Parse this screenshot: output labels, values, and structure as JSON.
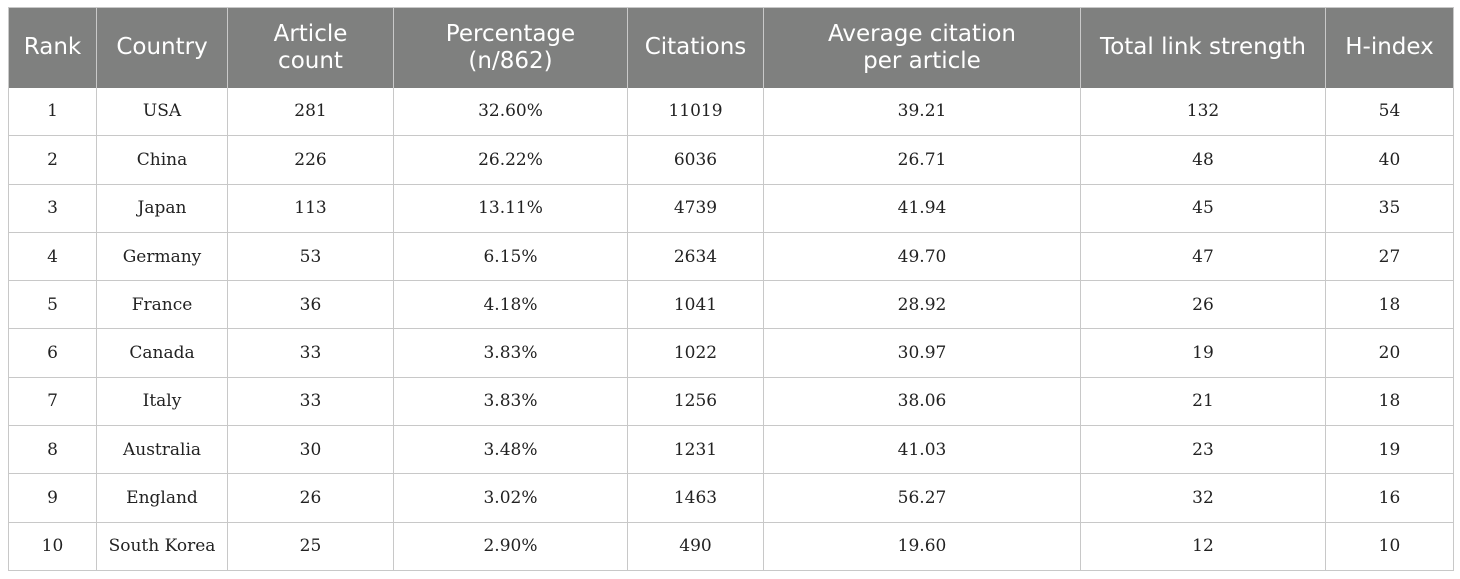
{
  "table": {
    "headers": [
      [
        "Rank"
      ],
      [
        "Country"
      ],
      [
        "Article",
        "count"
      ],
      [
        "Percentage",
        "(n/862)"
      ],
      [
        "Citations"
      ],
      [
        "Average citation",
        "per article"
      ],
      [
        "Total link strength"
      ],
      [
        "H-index"
      ]
    ],
    "rows": [
      [
        "1",
        "USA",
        "281",
        "32.60%",
        "11019",
        "39.21",
        "132",
        "54"
      ],
      [
        "2",
        "China",
        "226",
        "26.22%",
        "6036",
        "26.71",
        "48",
        "40"
      ],
      [
        "3",
        "Japan",
        "113",
        "13.11%",
        "4739",
        "41.94",
        "45",
        "35"
      ],
      [
        "4",
        "Germany",
        "53",
        "6.15%",
        "2634",
        "49.70",
        "47",
        "27"
      ],
      [
        "5",
        "France",
        "36",
        "4.18%",
        "1041",
        "28.92",
        "26",
        "18"
      ],
      [
        "6",
        "Canada",
        "33",
        "3.83%",
        "1022",
        "30.97",
        "19",
        "20"
      ],
      [
        "7",
        "Italy",
        "33",
        "3.83%",
        "1256",
        "38.06",
        "21",
        "18"
      ],
      [
        "8",
        "Australia",
        "30",
        "3.48%",
        "1231",
        "41.03",
        "23",
        "19"
      ],
      [
        "9",
        "England",
        "26",
        "3.02%",
        "1463",
        "56.27",
        "32",
        "16"
      ],
      [
        "10",
        "South Korea",
        "25",
        "2.90%",
        "490",
        "19.60",
        "12",
        "10"
      ]
    ]
  },
  "colors": {
    "header_bg": "#7f807f",
    "header_text": "#ffffff",
    "grid": "#c8c8c8"
  }
}
